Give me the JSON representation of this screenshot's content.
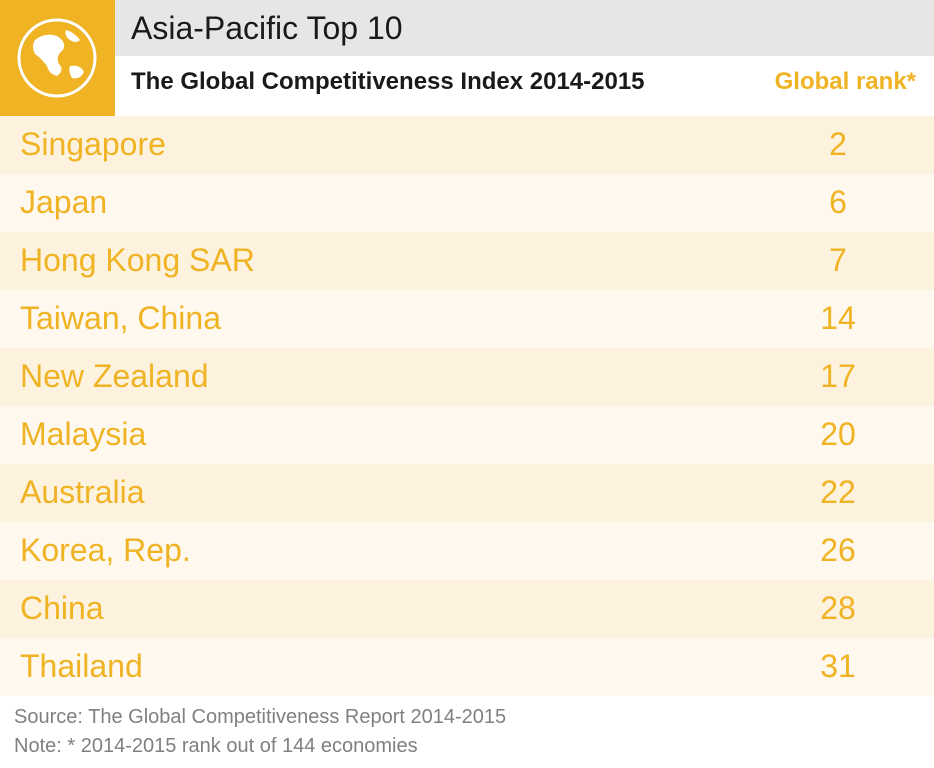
{
  "header": {
    "title": "Asia-Pacific Top 10",
    "subtitle": "The Global Competitiveness Index 2014-2015",
    "rank_label": "Global rank*"
  },
  "table": {
    "rows": [
      [
        "Singapore",
        "2"
      ],
      [
        "Japan",
        "6"
      ],
      [
        "Hong Kong SAR",
        "7"
      ],
      [
        "Taiwan, China",
        "14"
      ],
      [
        "New Zealand",
        "17"
      ],
      [
        "Malaysia",
        "20"
      ],
      [
        "Australia",
        "22"
      ],
      [
        "Korea, Rep.",
        "26"
      ],
      [
        "China",
        "28"
      ],
      [
        "Thailand",
        "31"
      ]
    ]
  },
  "footer": {
    "source": "Source: The Global Competitiveness Report 2014-2015",
    "note": "Note: * 2014-2015 rank out of 144 economies"
  }
}
